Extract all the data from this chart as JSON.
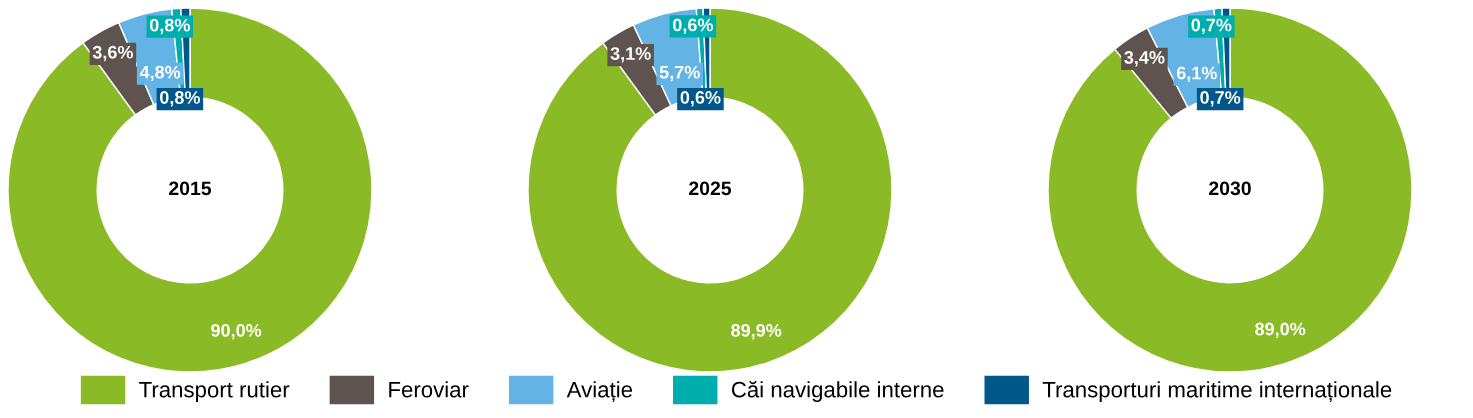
{
  "chart_data": [
    {
      "type": "donut",
      "title": "2015",
      "categories": [
        "Transport rutier",
        "Feroviar",
        "Aviație",
        "Căi navigabile interne",
        "Transporturi maritime internaționale"
      ],
      "values": [
        90.0,
        3.6,
        4.8,
        0.8,
        0.8
      ],
      "colors": [
        "#8abb26",
        "#5f5350",
        "#63b4e4",
        "#00adad",
        "#00578a"
      ],
      "value_labels": [
        "90,0%",
        "3,6%",
        "4,8%",
        "0,8%",
        "0,8%"
      ],
      "legend": "bottom"
    },
    {
      "type": "donut",
      "title": "2025",
      "values": [
        89.9,
        3.1,
        5.7,
        0.6,
        0.6
      ],
      "colors": [
        "#8abb26",
        "#5f5350",
        "#63b4e4",
        "#00adad",
        "#00578a"
      ],
      "value_labels": [
        "89,9%",
        "3,1%",
        "5,7%",
        "0,6%",
        "0,6%"
      ]
    },
    {
      "type": "donut",
      "title": "2030",
      "values": [
        89.0,
        3.4,
        6.1,
        0.7,
        0.7
      ],
      "colors": [
        "#8abb26",
        "#5f5350",
        "#63b4e4",
        "#00adad",
        "#00578a"
      ],
      "value_labels": [
        "89,0%",
        "3,4%",
        "6,1%",
        "0,7%",
        "0,7%"
      ]
    }
  ]
}
